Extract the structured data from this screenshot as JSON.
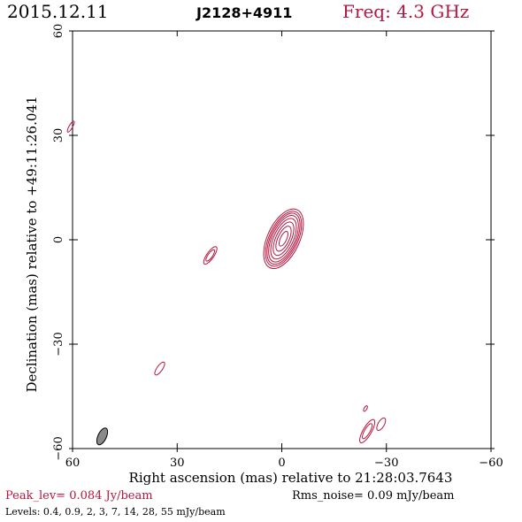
{
  "header": {
    "date": "2015.12.11",
    "source": "J2128+4911",
    "frequency": "Freq: 4.3 GHz"
  },
  "footer": {
    "peak": "Peak_lev=  0.084 Jy/beam",
    "rms": "Rms_noise= 0.09 mJy/beam",
    "levels": "Levels: 0.4, 0.9,   2,   3,   7,  14,  28,  55 mJy/beam"
  },
  "colors": {
    "contour": "#b5173f",
    "beam_fill": "#8a8a8a",
    "axis": "#000000"
  },
  "chart_data": {
    "type": "contour",
    "xlabel": "Right ascension (mas) relative to 21:28:03.7643",
    "ylabel": "Declination (mas) relative to +49:11:26.041",
    "xlim": [
      60,
      -60
    ],
    "ylim": [
      -60,
      60
    ],
    "xticks": [
      60,
      30,
      0,
      -30,
      -60
    ],
    "yticks": [
      -60,
      -30,
      0,
      30,
      60
    ],
    "xtick_labels": [
      "60",
      "30",
      "0",
      "−30",
      "−60"
    ],
    "ytick_labels": [
      "−60",
      "−30",
      "0",
      "30",
      "60"
    ],
    "grid": false,
    "contour_levels_mJy_per_beam": [
      0.4,
      0.9,
      2,
      3,
      7,
      14,
      28,
      55
    ],
    "peak_Jy_per_beam": 0.084,
    "rms_noise_mJy_per_beam": 0.09,
    "core": {
      "ra": -0.5,
      "dec": 0.3,
      "angle_deg": 25,
      "contours": [
        {
          "level": 0.4,
          "a": 4.6,
          "b": 9.2
        },
        {
          "level": 0.9,
          "a": 4.1,
          "b": 8.5
        },
        {
          "level": 2,
          "a": 3.7,
          "b": 7.9
        },
        {
          "level": 3,
          "a": 3.3,
          "b": 7.2
        },
        {
          "level": 7,
          "a": 2.8,
          "b": 6.3
        },
        {
          "level": 14,
          "a": 2.2,
          "b": 5.2
        },
        {
          "level": 28,
          "a": 1.6,
          "b": 3.9
        },
        {
          "level": 55,
          "a": 0.9,
          "b": 2.3
        }
      ]
    },
    "features": [
      {
        "ra": 20.5,
        "dec": -4.5,
        "a": 1.0,
        "b": 3.0,
        "angle_deg": 35,
        "levels": [
          0.4,
          0.9
        ]
      },
      {
        "ra": 35.0,
        "dec": -37.0,
        "a": 0.8,
        "b": 2.2,
        "angle_deg": 35,
        "levels": [
          0.4
        ]
      },
      {
        "ra": -24.5,
        "dec": -55.0,
        "a": 1.2,
        "b": 3.8,
        "angle_deg": 30,
        "levels": [
          0.4,
          0.9
        ]
      },
      {
        "ra": -28.5,
        "dec": -53.0,
        "a": 0.9,
        "b": 2.0,
        "angle_deg": 30,
        "levels": [
          0.4
        ]
      },
      {
        "ra": -24.0,
        "dec": -48.5,
        "a": 0.4,
        "b": 0.9,
        "angle_deg": 30,
        "levels": [
          0.4
        ]
      },
      {
        "ra": 60.5,
        "dec": 32.5,
        "a": 0.5,
        "b": 1.8,
        "angle_deg": 30,
        "levels": [
          0.4
        ]
      }
    ],
    "beam": {
      "ra": 51.5,
      "dec": -56.5,
      "a": 1.2,
      "b": 2.6,
      "angle_deg": 25
    }
  }
}
